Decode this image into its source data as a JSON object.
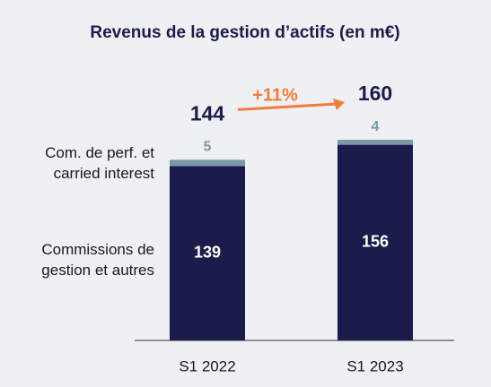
{
  "chart_data": {
    "type": "stacked_bar",
    "title": "Revenus de la gestion d’actifs (en m€)",
    "categories": [
      "S1 2022",
      "S1 2023"
    ],
    "series": [
      {
        "name": "Commissions de gestion et autres",
        "color": "#1c1c4c",
        "values": [
          139,
          156
        ]
      },
      {
        "name": "Com. de perf. et carried interest",
        "color": "#7b97a8",
        "values": [
          5,
          4
        ]
      }
    ],
    "totals": [
      144,
      160
    ],
    "annotation": "+11%",
    "annotation_color": "#f07c3a",
    "ylim": [
      0,
      185
    ]
  }
}
